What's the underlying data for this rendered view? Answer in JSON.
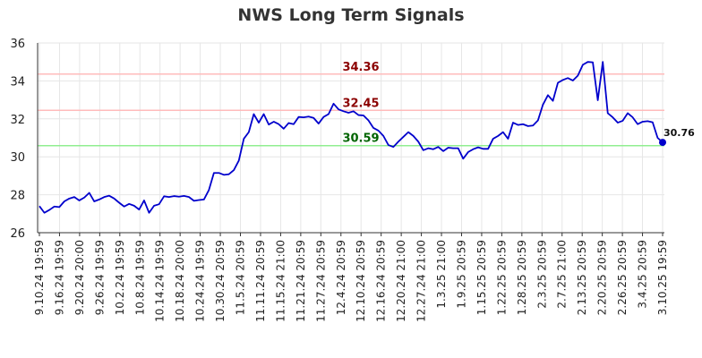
{
  "chart_data": {
    "type": "line",
    "title": "NWS Long Term Signals",
    "ylim": [
      26,
      36
    ],
    "yticks": [
      26,
      28,
      30,
      32,
      34,
      36
    ],
    "grid": true,
    "x_tick_labels": [
      "9.10.24 19:59",
      "9.16.24 19:59",
      "9.20.24 20:00",
      "9.26.24 19:59",
      "10.2.24 19:59",
      "10.8.24 19:59",
      "10.14.24 19:59",
      "10.18.24 20:00",
      "10.24.24 19:59",
      "10.30.24 20:59",
      "11.5.24 20:59",
      "11.11.24 20:59",
      "11.15.24 21:00",
      "11.21.24 20:59",
      "11.27.24 20:59",
      "12.4.24 20:59",
      "12.10.24 20:59",
      "12.16.24 20:59",
      "12.20.24 21:00",
      "12.27.24 21:00",
      "1.3.25 21:00",
      "1.9.25 20:59",
      "1.15.25 20:59",
      "1.22.25 20:59",
      "1.28.25 20:59",
      "2.3.25 20:59",
      "2.7.25 21:00",
      "2.13.25 20:59",
      "2.20.25 20:59",
      "2.26.25 20:59",
      "3.4.25 20:59",
      "3.10.25 19:59"
    ],
    "levels": [
      {
        "value": 34.36,
        "label": "34.36",
        "line_color": "#ffbbbb",
        "label_color": "#8b0000"
      },
      {
        "value": 32.45,
        "label": "32.45",
        "line_color": "#ffbbbb",
        "label_color": "#8b0000"
      },
      {
        "value": 30.59,
        "label": "30.59",
        "line_color": "#90ee90",
        "label_color": "#006400"
      }
    ],
    "series": [
      {
        "color": "#0000cc",
        "values": [
          27.4,
          27.05,
          27.2,
          27.38,
          27.35,
          27.65,
          27.8,
          27.88,
          27.7,
          27.85,
          28.1,
          27.65,
          27.75,
          27.88,
          27.95,
          27.8,
          27.58,
          27.38,
          27.52,
          27.42,
          27.22,
          27.7,
          27.05,
          27.42,
          27.5,
          27.92,
          27.88,
          27.93,
          27.9,
          27.94,
          27.88,
          27.68,
          27.72,
          27.75,
          28.25,
          29.15,
          29.15,
          29.05,
          29.08,
          29.3,
          29.8,
          30.95,
          31.3,
          32.25,
          31.8,
          32.25,
          31.7,
          31.85,
          31.72,
          31.48,
          31.78,
          31.72,
          32.1,
          32.08,
          32.12,
          32.05,
          31.75,
          32.1,
          32.25,
          32.8,
          32.5,
          32.4,
          32.32,
          32.4,
          32.2,
          32.18,
          31.92,
          31.52,
          31.38,
          31.1,
          30.62,
          30.52,
          30.8,
          31.05,
          31.3,
          31.1,
          30.8,
          30.35,
          30.45,
          30.4,
          30.52,
          30.3,
          30.48,
          30.45,
          30.45,
          29.9,
          30.25,
          30.4,
          30.5,
          30.42,
          30.42,
          30.95,
          31.1,
          31.3,
          30.95,
          31.8,
          31.68,
          31.72,
          31.62,
          31.65,
          31.92,
          32.75,
          33.25,
          32.95,
          33.9,
          34.05,
          34.15,
          34.02,
          34.28,
          34.85,
          35.0,
          34.98,
          32.98,
          35.0,
          32.3,
          32.08,
          31.8,
          31.9,
          32.3,
          32.08,
          31.72,
          31.85,
          31.88,
          31.82,
          31.0,
          30.76
        ]
      }
    ],
    "last_value_label": "30.76"
  }
}
